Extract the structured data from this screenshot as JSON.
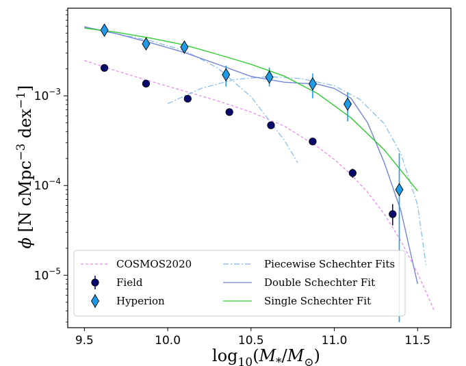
{
  "chart_data": {
    "type": "scatter",
    "title": "",
    "xlabel": "log10(M*/M⊙)",
    "ylabel": "ϕ [N cMpc−3 dex−1]",
    "xscale": "linear",
    "yscale": "log",
    "xlim": [
      9.4,
      11.7
    ],
    "ylim": [
      2.6e-06,
      0.0095
    ],
    "xticks": [
      9.5,
      10.0,
      10.5,
      11.0,
      11.5
    ],
    "xtick_labels": [
      "9.5",
      "10.0",
      "10.5",
      "11.0",
      "11.5"
    ],
    "yticks": [
      1e-05,
      0.0001,
      0.001
    ],
    "ytick_labels": [
      {
        "base": "10",
        "exp": "−5"
      },
      {
        "base": "10",
        "exp": "−4"
      },
      {
        "base": "10",
        "exp": "−3"
      }
    ],
    "grid": false,
    "legend_position": "lower-left",
    "series": [
      {
        "name": "Field",
        "kind": "points",
        "marker": "circle",
        "color": "#0a0a6e",
        "x": [
          9.62,
          9.87,
          10.12,
          10.37,
          10.62,
          10.87,
          11.11,
          11.35
        ],
        "y": [
          0.00205,
          0.00137,
          0.00093,
          0.00066,
          0.00047,
          0.00031,
          0.000138,
          4.8e-05
        ],
        "err_low": [
          0,
          0,
          0,
          0,
          0,
          0,
          1.6e-05,
          1.2e-05
        ],
        "err_high": [
          0,
          0,
          0,
          0,
          0,
          0,
          1.6e-05,
          1.4e-05
        ]
      },
      {
        "name": "Hyperion",
        "kind": "points",
        "marker": "diamond",
        "color": "#1f9be6",
        "x": [
          9.62,
          9.87,
          10.1,
          10.35,
          10.61,
          10.87,
          11.08,
          11.39
        ],
        "y": [
          0.0054,
          0.0038,
          0.0035,
          0.00172,
          0.00162,
          0.00136,
          0.00081,
          9e-05
        ],
        "err_low": [
          0.0005,
          0.0005,
          0.0005,
          0.00045,
          0.00035,
          0.00042,
          0.00029,
          8.7e-05
        ],
        "err_high": [
          0.0005,
          0.0005,
          0.0005,
          0.00045,
          0.00045,
          0.00042,
          0.00029,
          0.00014
        ]
      },
      {
        "name": "COSMOS2020",
        "kind": "line",
        "style": "dashed",
        "color": "#ee82ee",
        "x": [
          9.5,
          9.7,
          9.9,
          10.1,
          10.3,
          10.5,
          10.7,
          10.9,
          11.0,
          11.1,
          11.2,
          11.3,
          11.4,
          11.5,
          11.6
        ],
        "y": [
          0.00248,
          0.00188,
          0.00145,
          0.00113,
          0.00088,
          0.00066,
          0.00046,
          0.00027,
          0.000195,
          0.000133,
          8.4e-05,
          4.8e-05,
          2.4e-05,
          1.05e-05,
          4e-06
        ]
      },
      {
        "name": "Piecewise Schechter Fits",
        "kind": "line",
        "style": "dashdot",
        "color": "#7fb8ee",
        "segments": [
          {
            "x": [
              9.5,
              9.7,
              9.9,
              10.1,
              10.3,
              10.5,
              10.7,
              10.78
            ],
            "y": [
              0.0058,
              0.0049,
              0.0041,
              0.0032,
              0.00205,
              0.00098,
              0.00032,
              0.00018
            ]
          },
          {
            "x": [
              10.0,
              10.2,
              10.4,
              10.6,
              10.8,
              11.0,
              11.15,
              11.3,
              11.4,
              11.5,
              11.55
            ],
            "y": [
              0.00082,
              0.00121,
              0.00152,
              0.00164,
              0.00156,
              0.0013,
              0.00092,
              0.00049,
              0.000225,
              6.05e-05,
              1.3e-05
            ]
          }
        ]
      },
      {
        "name": "Double Schechter Fit",
        "kind": "line",
        "style": "solid",
        "color": "#7385d8",
        "x": [
          9.5,
          9.7,
          9.9,
          10.1,
          10.3,
          10.5,
          10.7,
          10.9,
          11.0,
          11.1,
          11.2,
          11.3,
          11.4,
          11.5
        ],
        "y": [
          0.0059,
          0.0049,
          0.0039,
          0.00305,
          0.00225,
          0.00165,
          0.00142,
          0.00135,
          0.00121,
          0.00094,
          0.0005,
          0.00018,
          5.2e-05,
          8e-06
        ]
      },
      {
        "name": "Single Schechter Fit",
        "kind": "line",
        "style": "solid",
        "color": "#2ecc2e",
        "x": [
          9.5,
          9.7,
          9.9,
          10.1,
          10.3,
          10.5,
          10.7,
          10.9,
          11.1,
          11.3,
          11.5
        ],
        "y": [
          0.0057,
          0.0051,
          0.0044,
          0.0037,
          0.0029,
          0.00225,
          0.00166,
          0.00106,
          0.00057,
          0.00025,
          8.7e-05
        ]
      }
    ],
    "legend_entries": [
      {
        "label": "COSMOS2020",
        "series": "COSMOS2020"
      },
      {
        "label": "Field",
        "series": "Field"
      },
      {
        "label": "Hyperion",
        "series": "Hyperion"
      },
      {
        "label": "Piecewise Schechter Fits",
        "series": "Piecewise Schechter Fits"
      },
      {
        "label": "Double Schechter Fit",
        "series": "Double Schechter Fit"
      },
      {
        "label": "Single Schechter Fit",
        "series": "Single Schechter Fit"
      }
    ]
  }
}
